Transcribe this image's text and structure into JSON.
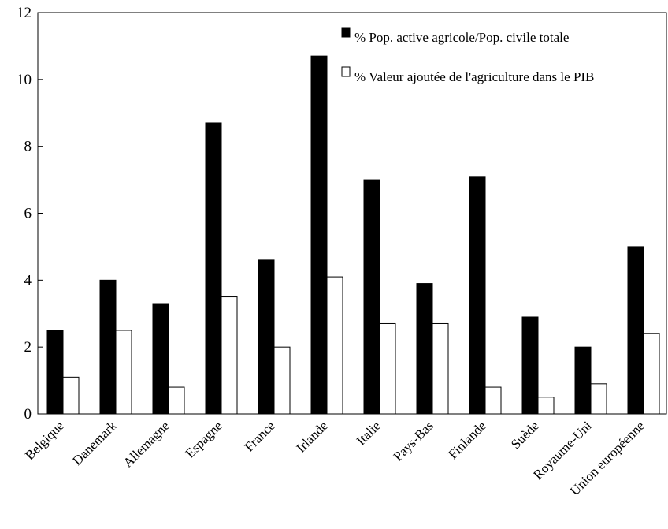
{
  "chart_data": {
    "type": "bar",
    "categories": [
      "Belgique",
      "Danemark",
      "Allemagne",
      "Espagne",
      "France",
      "Irlande",
      "Italie",
      "Pays-Bas",
      "Finlande",
      "Suède",
      "Royaume-Uni",
      "Union européenne"
    ],
    "series": [
      {
        "name": "% Pop. active agricole/Pop. civile totale",
        "color": "#000000",
        "values": [
          2.5,
          4.0,
          3.3,
          8.7,
          4.6,
          10.7,
          7.0,
          3.9,
          7.1,
          2.9,
          2.0,
          5.0
        ]
      },
      {
        "name": "% Valeur ajoutée de l'agriculture dans le PIB",
        "color": "#ffffff",
        "values": [
          1.1,
          2.5,
          0.8,
          3.5,
          2.0,
          4.1,
          2.7,
          2.7,
          0.8,
          0.5,
          0.9,
          2.4
        ]
      }
    ],
    "yticks": [
      "0",
      "2",
      "4",
      "6",
      "8",
      "10",
      "12"
    ],
    "ylim": [
      0,
      12
    ],
    "grid": false,
    "legend_position": "top-right"
  }
}
